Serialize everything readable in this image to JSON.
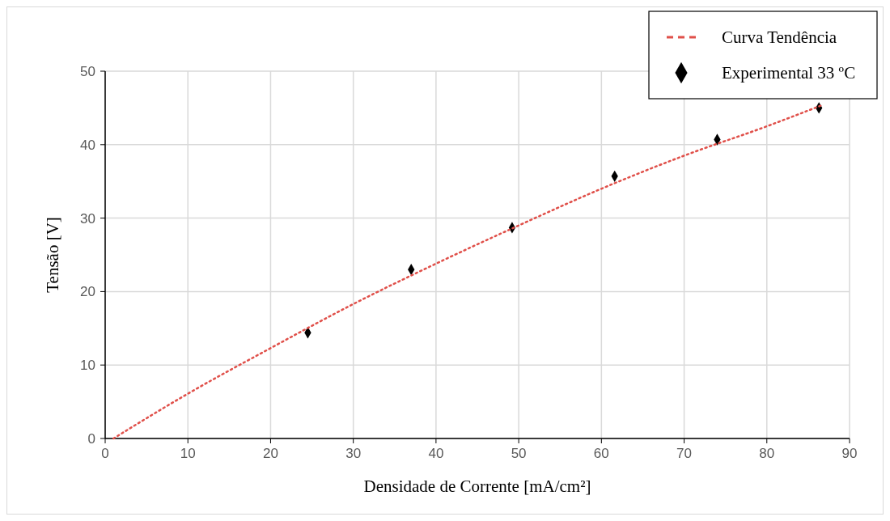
{
  "chart_data": {
    "type": "scatter",
    "xlabel": "Densidade de Corrente [mA/cm²]",
    "ylabel": "Tensão [V]",
    "xlim": [
      0,
      90
    ],
    "xticks": [
      0,
      10,
      20,
      30,
      40,
      50,
      60,
      70,
      80,
      90
    ],
    "ylim": [
      0,
      50
    ],
    "yticks": [
      0,
      10,
      20,
      30,
      40,
      50
    ],
    "grid": true,
    "legend": "top right",
    "series": [
      {
        "name": "Curva Tendência",
        "type": "line",
        "color": "#e0504a",
        "line_style": "dotted",
        "marker": "none",
        "x": [
          1,
          10,
          20,
          30,
          40,
          50,
          60,
          70,
          80,
          86.5
        ],
        "values": [
          0,
          6.1,
          12.3,
          18.3,
          23.8,
          29,
          34,
          38.5,
          42.5,
          45.3
        ]
      },
      {
        "name": "Experimental 33 ºC",
        "color": "#000000",
        "marker": "diamond",
        "x": [
          24.5,
          37,
          49.2,
          61.6,
          74,
          86.3
        ],
        "values": [
          14.4,
          23,
          28.7,
          35.7,
          40.7,
          45
        ]
      }
    ]
  }
}
